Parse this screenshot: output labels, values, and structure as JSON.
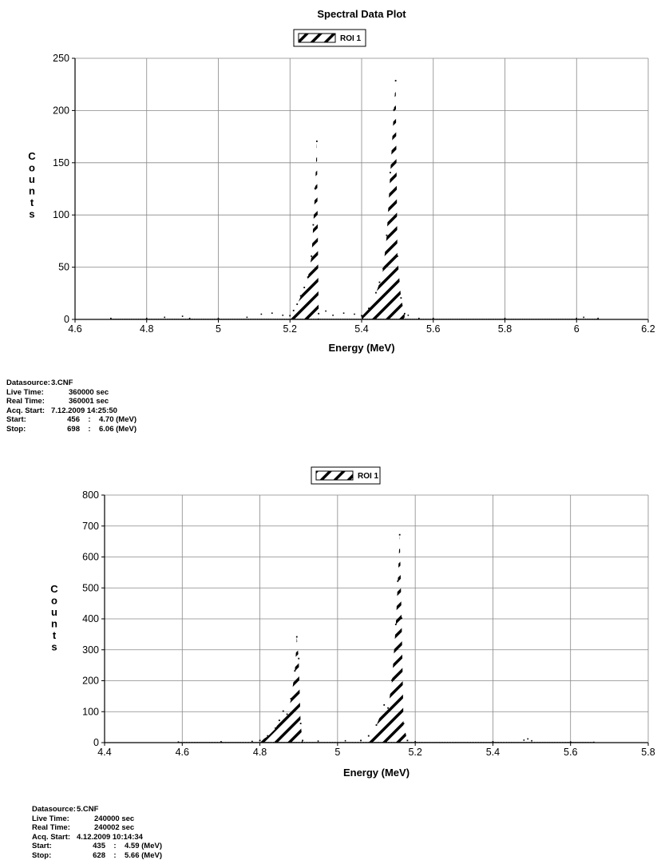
{
  "chart_data": [
    {
      "type": "area",
      "title": "Spectral Data Plot",
      "legend": "ROI 1",
      "xlabel": "Energy (MeV)",
      "ylabel": "Counts",
      "xlim": [
        4.6,
        6.2
      ],
      "ylim": [
        0,
        250
      ],
      "xticks": [
        4.6,
        4.8,
        5,
        5.2,
        5.4,
        5.6,
        5.8,
        6,
        6.2
      ],
      "yticks": [
        0,
        50,
        100,
        150,
        200,
        250
      ],
      "x_ticklabels": [
        "4.6",
        "4.8",
        "5",
        "5.2",
        "5.4",
        "5.6",
        "5.8",
        "6",
        "6.2"
      ],
      "y_ticklabels": [
        "0",
        "50",
        "100",
        "150",
        "200",
        "250"
      ],
      "range": [
        4.7,
        6.06
      ],
      "peaks": [
        {
          "roi": [
            5.2,
            5.28
          ],
          "points": [
            [
              5.2,
              3
            ],
            [
              5.21,
              8
            ],
            [
              5.22,
              14
            ],
            [
              5.23,
              22
            ],
            [
              5.24,
              30
            ],
            [
              5.25,
              40
            ],
            [
              5.26,
              60
            ],
            [
              5.265,
              90
            ],
            [
              5.27,
              125
            ],
            [
              5.275,
              170
            ],
            [
              5.28,
              5
            ]
          ]
        },
        {
          "roi": [
            5.4,
            5.52
          ],
          "points": [
            [
              5.4,
              3
            ],
            [
              5.42,
              10
            ],
            [
              5.44,
              25
            ],
            [
              5.45,
              35
            ],
            [
              5.46,
              48
            ],
            [
              5.47,
              80
            ],
            [
              5.48,
              140
            ],
            [
              5.49,
              200
            ],
            [
              5.495,
              228
            ],
            [
              5.5,
              60
            ],
            [
              5.51,
              20
            ],
            [
              5.52,
              5
            ]
          ]
        }
      ],
      "background": [
        [
          4.7,
          1
        ],
        [
          4.8,
          1
        ],
        [
          4.85,
          2
        ],
        [
          4.9,
          3
        ],
        [
          4.92,
          1
        ],
        [
          5.0,
          1
        ],
        [
          5.08,
          2
        ],
        [
          5.12,
          5
        ],
        [
          5.15,
          6
        ],
        [
          5.18,
          4
        ],
        [
          5.3,
          8
        ],
        [
          5.32,
          4
        ],
        [
          5.35,
          6
        ],
        [
          5.38,
          5
        ],
        [
          5.53,
          4
        ],
        [
          5.56,
          1
        ],
        [
          5.6,
          1
        ],
        [
          5.8,
          1
        ],
        [
          6.0,
          1
        ],
        [
          6.02,
          2
        ],
        [
          6.06,
          1
        ]
      ]
    },
    {
      "type": "area",
      "legend": "ROI 1",
      "xlabel": "Energy (MeV)",
      "ylabel": "Counts",
      "xlim": [
        4.4,
        5.8
      ],
      "ylim": [
        0,
        800
      ],
      "xticks": [
        4.4,
        4.6,
        4.8,
        5,
        5.2,
        5.4,
        5.6,
        5.8
      ],
      "yticks": [
        0,
        100,
        200,
        300,
        400,
        500,
        600,
        700,
        800
      ],
      "x_ticklabels": [
        "4.4",
        "4.6",
        "4.8",
        "5",
        "5.2",
        "5.4",
        "5.6",
        "5.8"
      ],
      "y_ticklabels": [
        "0",
        "100",
        "200",
        "300",
        "400",
        "500",
        "600",
        "700",
        "800"
      ],
      "range": [
        4.59,
        5.66
      ],
      "peaks": [
        {
          "roi": [
            4.8,
            4.91
          ],
          "points": [
            [
              4.8,
              5
            ],
            [
              4.82,
              20
            ],
            [
              4.84,
              45
            ],
            [
              4.85,
              70
            ],
            [
              4.86,
              100
            ],
            [
              4.87,
              90
            ],
            [
              4.88,
              140
            ],
            [
              4.89,
              230
            ],
            [
              4.895,
              340
            ],
            [
              4.9,
              270
            ],
            [
              4.905,
              60
            ],
            [
              4.91,
              5
            ]
          ]
        },
        {
          "roi": [
            5.06,
            5.18
          ],
          "points": [
            [
              5.06,
              5
            ],
            [
              5.08,
              20
            ],
            [
              5.1,
              55
            ],
            [
              5.12,
              120
            ],
            [
              5.13,
              110
            ],
            [
              5.14,
              200
            ],
            [
              5.15,
              380
            ],
            [
              5.155,
              520
            ],
            [
              5.16,
              670
            ],
            [
              5.165,
              400
            ],
            [
              5.17,
              60
            ],
            [
              5.18,
              5
            ]
          ]
        }
      ],
      "background": [
        [
          4.59,
          2
        ],
        [
          4.7,
          3
        ],
        [
          4.78,
          4
        ],
        [
          4.95,
          5
        ],
        [
          5.02,
          6
        ],
        [
          5.2,
          3
        ],
        [
          5.4,
          3
        ],
        [
          5.48,
          8
        ],
        [
          5.49,
          12
        ],
        [
          5.5,
          6
        ],
        [
          5.6,
          2
        ],
        [
          5.66,
          1
        ]
      ]
    }
  ],
  "info": [
    {
      "datasource_label": "Datasource:",
      "datasource": "3.CNF",
      "live_label": "Live Time:",
      "live": "360000 sec",
      "real_label": "Real Time:",
      "real": "360001 sec",
      "acq_label": "Acq. Start:",
      "acq": "7.12.2009 14:25:50",
      "start_label": "Start:",
      "start_ch": "456",
      "start_e": "4.70 (MeV)",
      "stop_label": "Stop:",
      "stop_ch": "698",
      "stop_e": "6.06 (MeV)",
      "sep": ":"
    },
    {
      "datasource_label": "Datasource:",
      "datasource": "5.CNF",
      "live_label": "Live Time:",
      "live": "240000 sec",
      "real_label": "Real Time:",
      "real": "240002 sec",
      "acq_label": "Acq. Start:",
      "acq": "4.12.2009 10:14:34",
      "start_label": "Start:",
      "start_ch": "435",
      "start_e": "4.59 (MeV)",
      "stop_label": "Stop:",
      "stop_ch": "628",
      "stop_e": "5.66 (MeV)",
      "sep": ":"
    }
  ]
}
